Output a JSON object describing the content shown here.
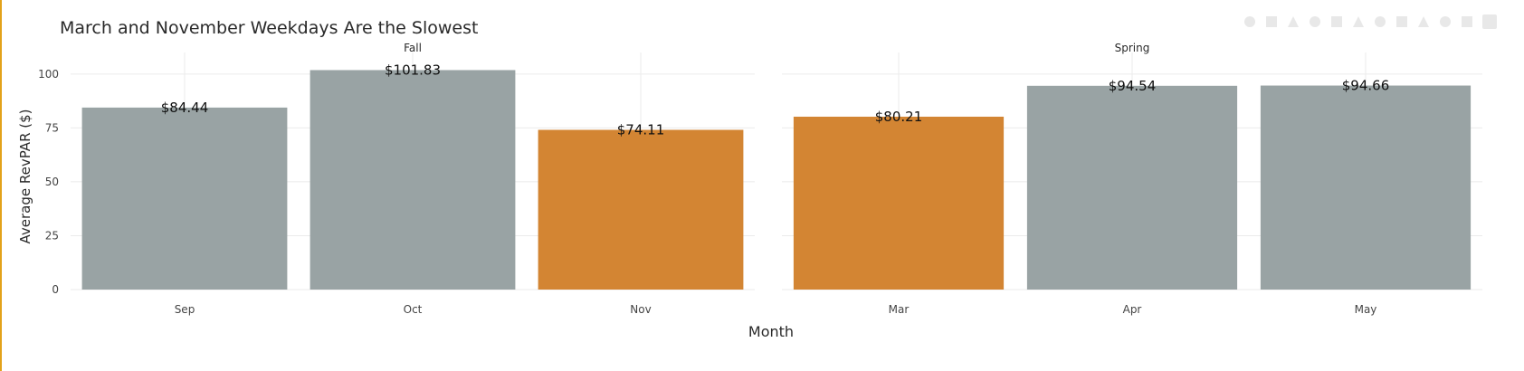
{
  "chart_data": {
    "type": "bar",
    "title": "March and November Weekdays Are the Slowest",
    "xlabel": "Month",
    "ylabel": "Average RevPAR ($)",
    "ylim": [
      0,
      110
    ],
    "yticks": [
      0,
      25,
      50,
      75,
      100
    ],
    "grid": true,
    "facets": [
      {
        "name": "Fall",
        "categories": [
          "Sep",
          "Oct",
          "Nov"
        ],
        "values": [
          84.44,
          101.83,
          74.11
        ],
        "labels": [
          "$84.44",
          "$101.83",
          "$74.11"
        ],
        "highlight": [
          false,
          false,
          true
        ]
      },
      {
        "name": "Spring",
        "categories": [
          "Mar",
          "Apr",
          "May"
        ],
        "values": [
          80.21,
          94.54,
          94.66
        ],
        "labels": [
          "$80.21",
          "$94.54",
          "$94.66"
        ],
        "highlight": [
          true,
          false,
          false
        ]
      }
    ]
  },
  "colors": {
    "base": "#99a3a4",
    "highlight": "#d35400",
    "highlight_display": "#d38533",
    "grid": "#ebebeb",
    "text": "#2a2a2a"
  },
  "toolbar": {
    "icons": [
      "camera-icon",
      "zoom-icon",
      "pan-icon",
      "box-select-icon",
      "lasso-icon",
      "zoom-in-icon",
      "zoom-out-icon",
      "autoscale-icon",
      "reset-icon",
      "spike-icon",
      "compare-icon",
      "plotly-logo-icon"
    ]
  }
}
